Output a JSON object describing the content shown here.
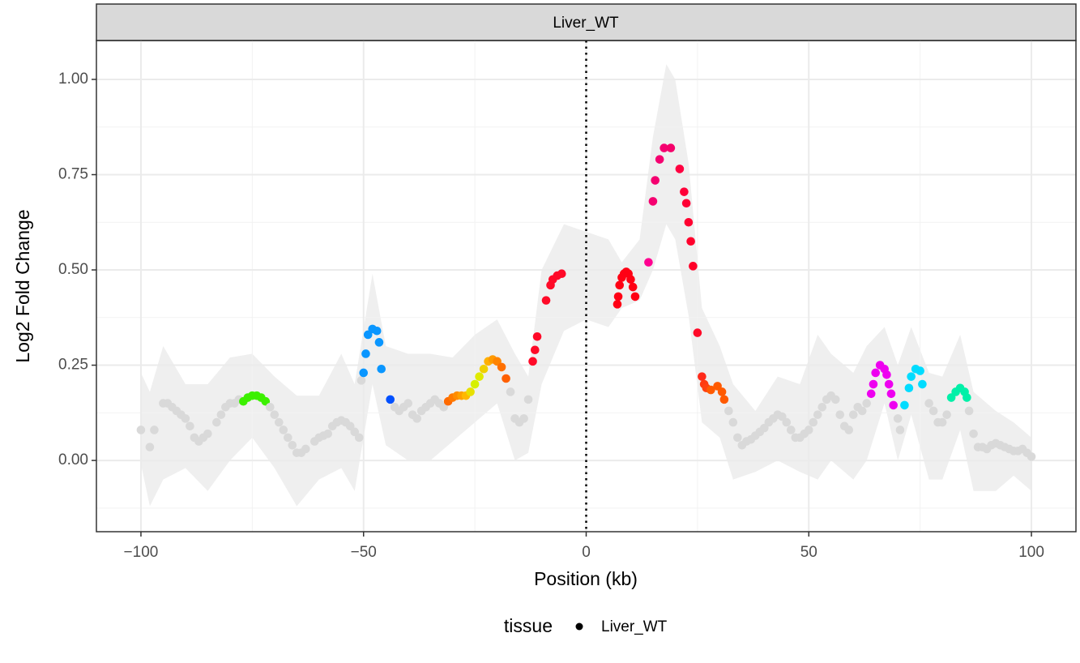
{
  "chart_data": {
    "type": "scatter",
    "strip": "Liver_WT",
    "xlabel": "Position (kb)",
    "ylabel": "Log2 Fold Change",
    "legend_title": "tissue",
    "legend": "bottom",
    "grid": true,
    "vline": 0,
    "xlim": [
      -110,
      110
    ],
    "ylim": [
      -0.187,
      1.102
    ],
    "xticks": [
      {
        "value": -100,
        "label": "−100"
      },
      {
        "value": -50,
        "label": "−50"
      },
      0,
      50,
      100
    ],
    "yticks": [
      {
        "value": 0,
        "label": "0.00"
      },
      {
        "value": 0.25,
        "label": "0.25"
      },
      {
        "value": 0.5,
        "label": "0.50"
      },
      {
        "value": 0.75,
        "label": "0.75"
      },
      {
        "value": 1,
        "label": "1.00"
      }
    ],
    "xminor": [
      -75,
      -25,
      25,
      75
    ],
    "yminor": [
      -0.125,
      0.125,
      0.375,
      0.625,
      0.875
    ],
    "ribbon": {
      "color": "#efefef",
      "x": [
        -100,
        -98,
        -95,
        -90,
        -85,
        -80,
        -75,
        -70,
        -65,
        -60,
        -55,
        -52,
        -48,
        -45,
        -40,
        -35,
        -30,
        -25,
        -20,
        -16,
        -13,
        -10,
        -5,
        0,
        5,
        8,
        12,
        15,
        18,
        20,
        23,
        26,
        30,
        33,
        38,
        43,
        48,
        52,
        55,
        60,
        63,
        67,
        70,
        73,
        77,
        80,
        84,
        87,
        92,
        96,
        100
      ],
      "lower": [
        -0.01,
        -0.12,
        -0.05,
        -0.02,
        -0.08,
        0.0,
        0.06,
        -0.02,
        -0.12,
        -0.05,
        -0.02,
        -0.08,
        0.2,
        0.04,
        0.0,
        0.0,
        0.05,
        0.1,
        0.15,
        0.0,
        0.02,
        0.2,
        0.34,
        0.37,
        0.35,
        0.4,
        0.42,
        0.5,
        0.62,
        0.58,
        0.38,
        0.1,
        0.06,
        -0.05,
        -0.03,
        0.0,
        -0.03,
        -0.05,
        0.0,
        -0.05,
        0.0,
        0.15,
        0.0,
        0.12,
        -0.05,
        -0.05,
        0.08,
        -0.08,
        -0.08,
        -0.04,
        -0.08
      ],
      "upper": [
        0.23,
        0.18,
        0.3,
        0.2,
        0.2,
        0.27,
        0.28,
        0.22,
        0.17,
        0.17,
        0.28,
        0.2,
        0.49,
        0.3,
        0.28,
        0.28,
        0.27,
        0.33,
        0.37,
        0.28,
        0.22,
        0.5,
        0.62,
        0.6,
        0.58,
        0.52,
        0.58,
        0.85,
        1.04,
        1.0,
        0.78,
        0.4,
        0.3,
        0.2,
        0.13,
        0.22,
        0.2,
        0.33,
        0.28,
        0.23,
        0.3,
        0.35,
        0.25,
        0.35,
        0.23,
        0.22,
        0.33,
        0.18,
        0.13,
        0.1,
        0.06
      ]
    },
    "series": [
      {
        "name": "Liver_WT",
        "x": [
          -100,
          -98,
          -97,
          -95,
          -94,
          -93,
          -92,
          -91,
          -90,
          -89,
          -88,
          -87,
          -86,
          -85,
          -83,
          -82,
          -81,
          -80,
          -79,
          -78,
          -77,
          -76,
          -75,
          -74,
          -73,
          -72,
          -71,
          -70,
          -69,
          -68,
          -67,
          -66,
          -65,
          -64,
          -63,
          -61,
          -60,
          -59,
          -58,
          -57,
          -56,
          -55,
          -54,
          -53,
          -52,
          -51,
          -50.5,
          -50,
          -49.5,
          -49,
          -48,
          -47,
          -46.5,
          -46,
          -44,
          -43,
          -42,
          -41,
          -40,
          -39,
          -38,
          -37,
          -36,
          -35,
          -34,
          -33,
          -32,
          -31,
          -30,
          -29,
          -28,
          -27,
          -26,
          -25,
          -24,
          -23,
          -22,
          -21,
          -20,
          -19,
          -18,
          -17,
          -16,
          -15,
          -14,
          -13,
          -12,
          -11.5,
          -11,
          -9,
          -8,
          -7.5,
          -6.5,
          -5.5,
          7,
          7.2,
          7.5,
          8,
          8.5,
          9,
          9.5,
          10,
          10.5,
          11,
          14,
          15,
          15.5,
          16.5,
          17.5,
          19,
          21,
          22,
          22.5,
          23,
          23.5,
          24,
          25,
          26,
          26.5,
          27,
          28,
          29.5,
          30.5,
          31,
          32,
          33,
          34,
          35,
          36,
          37,
          38,
          39,
          40,
          41,
          42,
          43,
          44,
          45,
          46,
          47,
          48,
          49,
          50,
          51,
          52,
          53,
          54,
          55,
          56,
          57,
          58,
          59,
          60,
          61,
          62,
          63,
          64,
          64.5,
          65,
          66,
          67,
          67.5,
          68,
          68.5,
          69,
          70,
          70.5,
          71.5,
          72.5,
          73,
          74,
          75,
          75.5,
          77,
          78,
          79,
          80,
          81,
          82,
          83,
          84,
          85,
          85.5,
          86,
          87,
          88,
          89,
          90,
          91,
          92,
          93,
          94,
          95,
          96,
          97,
          98,
          99,
          100
        ],
        "values": [
          0.08,
          0.035,
          0.08,
          0.15,
          0.15,
          0.14,
          0.13,
          0.12,
          0.11,
          0.09,
          0.06,
          0.05,
          0.06,
          0.07,
          0.1,
          0.12,
          0.14,
          0.15,
          0.15,
          0.16,
          0.155,
          0.165,
          0.17,
          0.17,
          0.165,
          0.155,
          0.14,
          0.12,
          0.1,
          0.08,
          0.06,
          0.04,
          0.02,
          0.02,
          0.03,
          0.05,
          0.06,
          0.065,
          0.07,
          0.09,
          0.1,
          0.105,
          0.1,
          0.09,
          0.075,
          0.06,
          0.21,
          0.23,
          0.28,
          0.33,
          0.345,
          0.34,
          0.31,
          0.24,
          0.16,
          0.14,
          0.13,
          0.14,
          0.15,
          0.12,
          0.11,
          0.13,
          0.14,
          0.15,
          0.16,
          0.15,
          0.14,
          0.155,
          0.165,
          0.17,
          0.17,
          0.17,
          0.18,
          0.2,
          0.22,
          0.24,
          0.26,
          0.265,
          0.26,
          0.245,
          0.215,
          0.18,
          0.11,
          0.1,
          0.11,
          0.16,
          0.26,
          0.29,
          0.325,
          0.42,
          0.46,
          0.475,
          0.485,
          0.49,
          0.41,
          0.43,
          0.46,
          0.48,
          0.49,
          0.495,
          0.49,
          0.475,
          0.455,
          0.43,
          0.52,
          0.68,
          0.735,
          0.79,
          0.82,
          0.82,
          0.765,
          0.705,
          0.675,
          0.625,
          0.575,
          0.51,
          0.335,
          0.22,
          0.2,
          0.19,
          0.185,
          0.195,
          0.18,
          0.16,
          0.13,
          0.1,
          0.06,
          0.04,
          0.05,
          0.055,
          0.065,
          0.075,
          0.085,
          0.1,
          0.11,
          0.12,
          0.115,
          0.1,
          0.08,
          0.06,
          0.06,
          0.07,
          0.08,
          0.1,
          0.12,
          0.14,
          0.16,
          0.17,
          0.16,
          0.12,
          0.09,
          0.08,
          0.12,
          0.14,
          0.13,
          0.15,
          0.175,
          0.2,
          0.23,
          0.25,
          0.24,
          0.225,
          0.2,
          0.175,
          0.145,
          0.11,
          0.08,
          0.145,
          0.19,
          0.22,
          0.24,
          0.235,
          0.2,
          0.15,
          0.13,
          0.1,
          0.1,
          0.12,
          0.165,
          0.18,
          0.19,
          0.18,
          0.165,
          0.13,
          0.07,
          0.035,
          0.035,
          0.03,
          0.04,
          0.045,
          0.04,
          0.035,
          0.03,
          0.025,
          0.025,
          0.03,
          0.02,
          0.01
        ],
        "colors": [
          "#d9d9d9",
          "#d9d9d9",
          "#d9d9d9",
          "#d9d9d9",
          "#d9d9d9",
          "#d9d9d9",
          "#d9d9d9",
          "#d9d9d9",
          "#d9d9d9",
          "#d9d9d9",
          "#d9d9d9",
          "#d9d9d9",
          "#d9d9d9",
          "#d9d9d9",
          "#d9d9d9",
          "#d9d9d9",
          "#d9d9d9",
          "#d9d9d9",
          "#d9d9d9",
          "#d9d9d9",
          "#3cf000",
          "#3cf000",
          "#3cf000",
          "#3cf000",
          "#3cf000",
          "#3cf000",
          "#d9d9d9",
          "#d9d9d9",
          "#d9d9d9",
          "#d9d9d9",
          "#d9d9d9",
          "#d9d9d9",
          "#d9d9d9",
          "#d9d9d9",
          "#d9d9d9",
          "#d9d9d9",
          "#d9d9d9",
          "#d9d9d9",
          "#d9d9d9",
          "#d9d9d9",
          "#d9d9d9",
          "#d9d9d9",
          "#d9d9d9",
          "#d9d9d9",
          "#d9d9d9",
          "#d9d9d9",
          "#d9d9d9",
          "#0a96ff",
          "#0a96ff",
          "#0a96ff",
          "#0a96ff",
          "#0a96ff",
          "#0a96ff",
          "#0a96ff",
          "#0050ff",
          "#d9d9d9",
          "#d9d9d9",
          "#d9d9d9",
          "#d9d9d9",
          "#d9d9d9",
          "#d9d9d9",
          "#d9d9d9",
          "#d9d9d9",
          "#d9d9d9",
          "#d9d9d9",
          "#d9d9d9",
          "#d9d9d9",
          "#ff6a00",
          "#ff7a00",
          "#ff8c00",
          "#ffa000",
          "#ffb800",
          "#e8e000",
          "#d6f000",
          "#e0ea00",
          "#f0d000",
          "#ffb000",
          "#ff9a00",
          "#ff8400",
          "#ff7000",
          "#ff6000",
          "#d9d9d9",
          "#d9d9d9",
          "#d9d9d9",
          "#d9d9d9",
          "#d9d9d9",
          "#ff0a28",
          "#ff0a28",
          "#ff0a28",
          "#ff0a28",
          "#ff0a28",
          "#ff0a28",
          "#ff0a28",
          "#ff0a28",
          "#ff0014",
          "#ff0014",
          "#ff0014",
          "#ff0014",
          "#ff0014",
          "#ff0014",
          "#ff0014",
          "#ff0014",
          "#ff0014",
          "#ff0014",
          "#ff0090",
          "#f50070",
          "#f50070",
          "#f50070",
          "#f50070",
          "#f5006a",
          "#ff0040",
          "#ff0038",
          "#ff0034",
          "#ff0030",
          "#ff002c",
          "#ff0028",
          "#ff0a28",
          "#ff2a1a",
          "#ff3a10",
          "#ff4010",
          "#ff5a00",
          "#ff5a00",
          "#ff5a00",
          "#ff5a00",
          "#d9d9d9",
          "#d9d9d9",
          "#d9d9d9",
          "#d9d9d9",
          "#d9d9d9",
          "#d9d9d9",
          "#d9d9d9",
          "#d9d9d9",
          "#d9d9d9",
          "#d9d9d9",
          "#d9d9d9",
          "#d9d9d9",
          "#d9d9d9",
          "#d9d9d9",
          "#d9d9d9",
          "#d9d9d9",
          "#d9d9d9",
          "#d9d9d9",
          "#d9d9d9",
          "#d9d9d9",
          "#d9d9d9",
          "#d9d9d9",
          "#d9d9d9",
          "#d9d9d9",
          "#d9d9d9",
          "#d9d9d9",
          "#d9d9d9",
          "#d9d9d9",
          "#d9d9d9",
          "#d9d9d9",
          "#d9d9d9",
          "#d9d9d9",
          "#ee00f0",
          "#ee00f0",
          "#ee00f0",
          "#ee00f0",
          "#ee00f0",
          "#ee00f0",
          "#ee00f0",
          "#ee00f0",
          "#ee00f0",
          "#d9d9d9",
          "#d9d9d9",
          "#00dcff",
          "#00dcff",
          "#00dcff",
          "#00dcff",
          "#00dcff",
          "#00dcff",
          "#d9d9d9",
          "#d9d9d9",
          "#d9d9d9",
          "#d9d9d9",
          "#d9d9d9",
          "#00f0a8",
          "#00f0a8",
          "#00f0a8",
          "#00f0a8",
          "#00f0a8",
          "#d9d9d9",
          "#d9d9d9",
          "#d9d9d9",
          "#d9d9d9",
          "#d9d9d9",
          "#d9d9d9",
          "#d9d9d9",
          "#d9d9d9",
          "#d9d9d9",
          "#d9d9d9",
          "#d9d9d9",
          "#d9d9d9",
          "#d9d9d9",
          "#d9d9d9",
          "#d9d9d9"
        ],
        "legend_color": "#000000"
      }
    ]
  }
}
